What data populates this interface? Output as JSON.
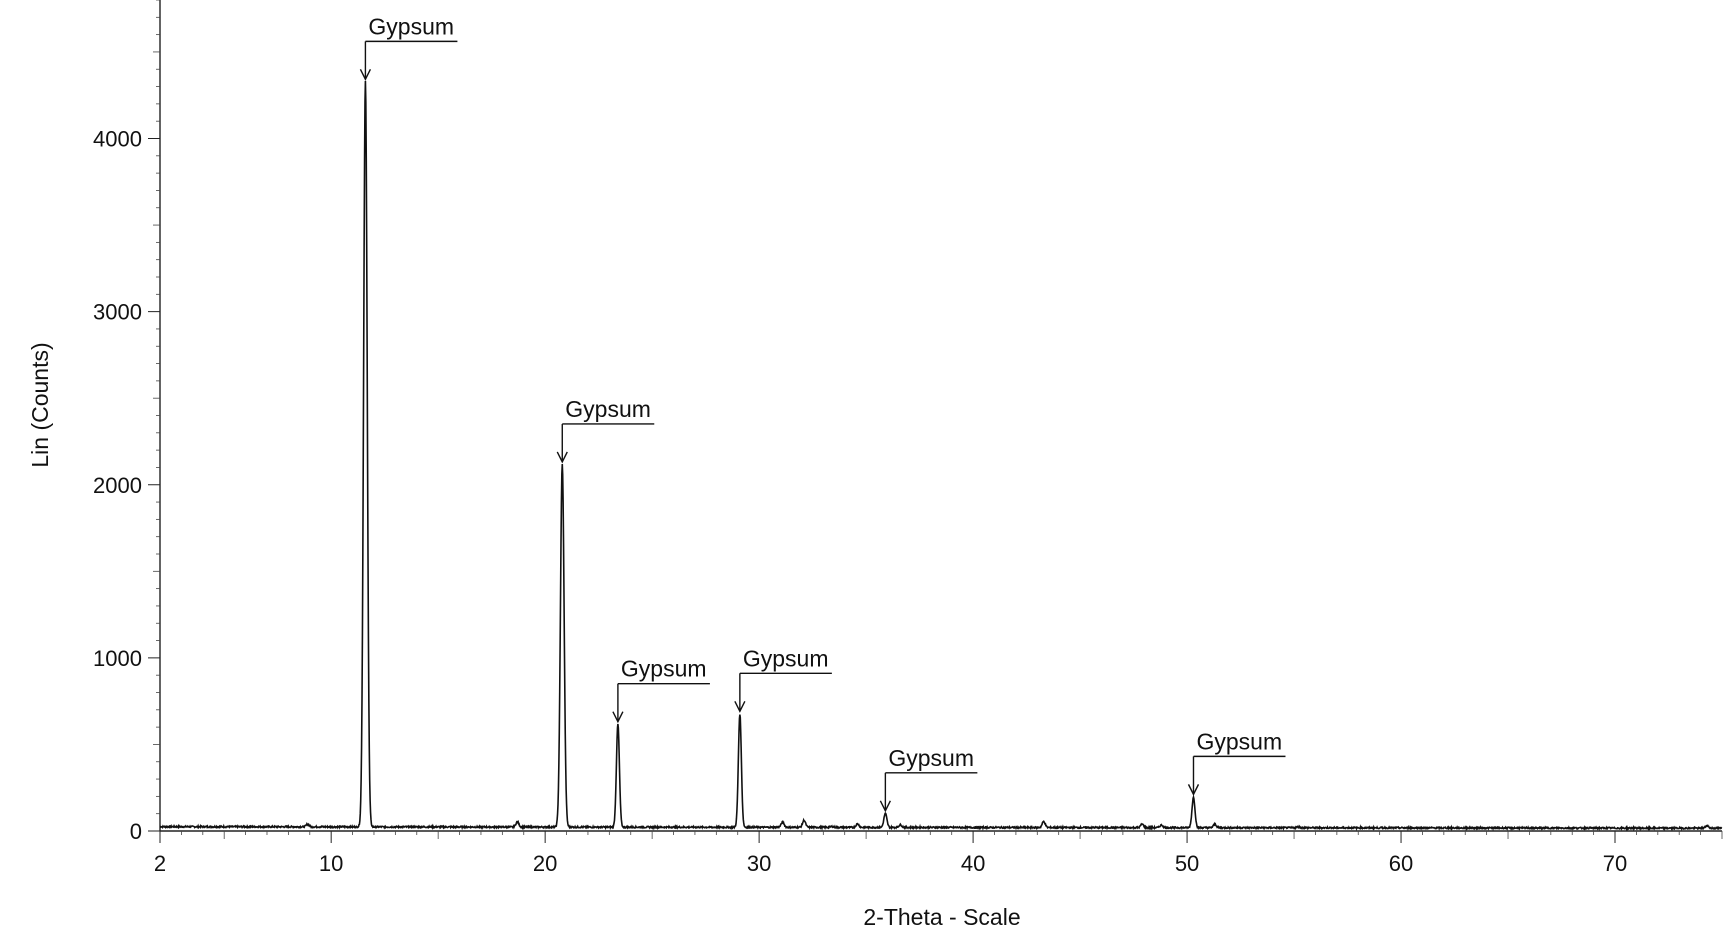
{
  "chart_data": {
    "type": "line",
    "xlabel": "2-Theta - Scale",
    "ylabel": "Lin (Counts)",
    "xlim": [
      2,
      75
    ],
    "ylim": [
      0,
      4800
    ],
    "x_ticks": [
      2,
      10,
      20,
      30,
      40,
      50,
      60,
      70
    ],
    "y_ticks": [
      0,
      1000,
      2000,
      3000,
      4000
    ],
    "grid": false,
    "baseline": 25,
    "peaks": [
      {
        "x": 8.9,
        "y": 40
      },
      {
        "x": 11.6,
        "y": 4330
      },
      {
        "x": 18.7,
        "y": 55
      },
      {
        "x": 20.8,
        "y": 2120
      },
      {
        "x": 23.4,
        "y": 620
      },
      {
        "x": 29.1,
        "y": 680
      },
      {
        "x": 31.1,
        "y": 55
      },
      {
        "x": 32.1,
        "y": 65
      },
      {
        "x": 33.4,
        "y": 30
      },
      {
        "x": 34.6,
        "y": 45
      },
      {
        "x": 35.9,
        "y": 105
      },
      {
        "x": 36.6,
        "y": 40
      },
      {
        "x": 43.3,
        "y": 60
      },
      {
        "x": 47.9,
        "y": 45
      },
      {
        "x": 48.8,
        "y": 40
      },
      {
        "x": 50.3,
        "y": 200
      },
      {
        "x": 51.3,
        "y": 45
      },
      {
        "x": 55.2,
        "y": 30
      },
      {
        "x": 74.3,
        "y": 40
      }
    ],
    "annotations": [
      {
        "text": "Gypsum",
        "x": 11.6,
        "y": 4330
      },
      {
        "text": "Gypsum",
        "x": 20.8,
        "y": 2120
      },
      {
        "text": "Gypsum",
        "x": 23.4,
        "y": 620
      },
      {
        "text": "Gypsum",
        "x": 29.1,
        "y": 680
      },
      {
        "text": "Gypsum",
        "x": 35.9,
        "y": 105
      },
      {
        "text": "Gypsum",
        "x": 50.3,
        "y": 200
      }
    ]
  }
}
